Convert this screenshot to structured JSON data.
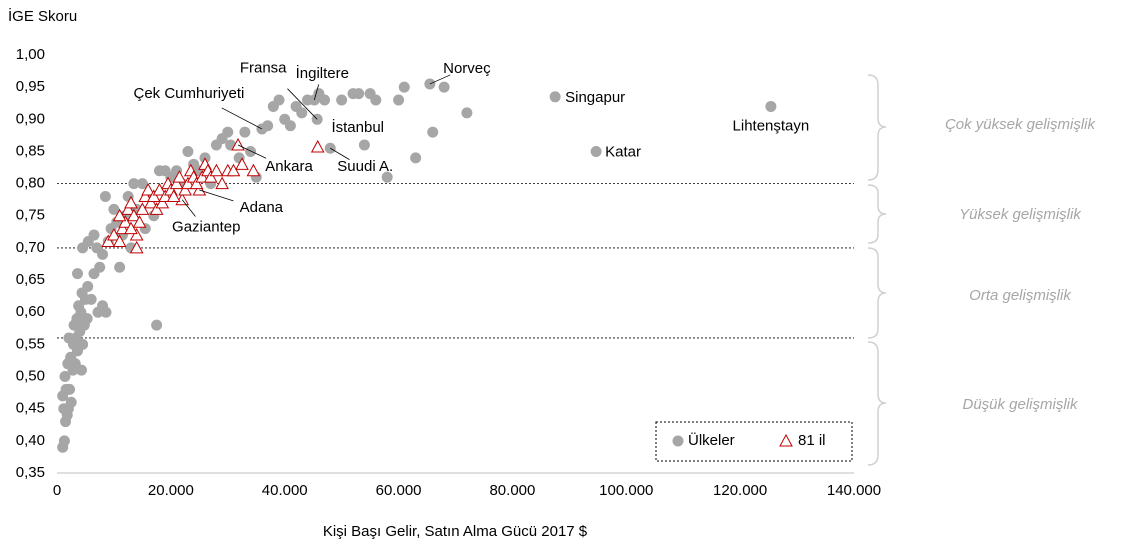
{
  "chart_data": {
    "type": "scatter",
    "y_label": "İGE Skoru",
    "x_label": "Kişi Başı Gelir, Satın Alma Gücü 2017 $",
    "xlim": [
      0,
      140000
    ],
    "ylim": [
      0.35,
      1.0
    ],
    "xticks": [
      0,
      {
        "value": 20000,
        "label": "20.000"
      },
      {
        "value": 40000,
        "label": "40.000"
      },
      {
        "value": 60000,
        "label": "60.000"
      },
      {
        "value": 80000,
        "label": "80.000"
      },
      {
        "value": 100000,
        "label": "100.000"
      },
      {
        "value": 120000,
        "label": "120.000"
      },
      {
        "value": 140000,
        "label": "140.000"
      }
    ],
    "yticks": [
      {
        "value": 0.35,
        "label": "0,35"
      },
      {
        "value": 0.4,
        "label": "0,40"
      },
      {
        "value": 0.45,
        "label": "0,45"
      },
      {
        "value": 0.5,
        "label": "0,50"
      },
      {
        "value": 0.55,
        "label": "0,55"
      },
      {
        "value": 0.6,
        "label": "0,60"
      },
      {
        "value": 0.65,
        "label": "0,65"
      },
      {
        "value": 0.7,
        "label": "0,70"
      },
      {
        "value": 0.75,
        "label": "0,75"
      },
      {
        "value": 0.8,
        "label": "0,80"
      },
      {
        "value": 0.85,
        "label": "0,85"
      },
      {
        "value": 0.9,
        "label": "0,90"
      },
      {
        "value": 0.95,
        "label": "0,95"
      },
      {
        "value": 1.0,
        "label": "1,00"
      }
    ],
    "thresholds": [
      0.8,
      0.7,
      0.56
    ],
    "band_labels": [
      "Çok yüksek gelişmişlik",
      "Yüksek gelişmişlik",
      "Orta gelişmişlik",
      "Düşük gelişmişlik"
    ],
    "series": [
      {
        "name": "Ülkeler",
        "color": "#a6a6a6",
        "marker": "circle",
        "x": [
          65500,
          87500,
          94700,
          125400,
          45700,
          45200,
          36000,
          48000,
          1000,
          1300,
          1500,
          1800,
          1200,
          2000,
          2500,
          1000,
          1600,
          2200,
          1400,
          2800,
          1900,
          3200,
          2400,
          4300,
          3600,
          2900,
          4500,
          3300,
          2100,
          4000,
          3000,
          4800,
          3500,
          5300,
          4200,
          3800,
          5000,
          4400,
          6000,
          3600,
          5400,
          7200,
          8600,
          8000,
          6500,
          7500,
          4500,
          5500,
          6500,
          7000,
          8000,
          9000,
          9500,
          10500,
          11000,
          8500,
          10000,
          11500,
          12000,
          13000,
          12500,
          14000,
          13500,
          15000,
          16000,
          17000,
          15500,
          18000,
          19000,
          20000,
          17500,
          21000,
          22000,
          23000,
          24000,
          25000,
          26000,
          27000,
          28000,
          29000,
          30000,
          30500,
          32000,
          33000,
          34000,
          35000,
          37000,
          38000,
          39000,
          40000,
          41000,
          42000,
          43000,
          44000,
          46000,
          47000,
          50000,
          52000,
          53000,
          54000,
          55000,
          56000,
          58000,
          60000,
          61000,
          63000,
          66000,
          68000,
          72000
        ],
        "values": [
          0.955,
          0.935,
          0.85,
          0.92,
          0.9,
          0.93,
          0.885,
          0.855,
          0.39,
          0.4,
          0.43,
          0.44,
          0.45,
          0.45,
          0.46,
          0.47,
          0.48,
          0.48,
          0.5,
          0.51,
          0.52,
          0.52,
          0.53,
          0.51,
          0.54,
          0.55,
          0.55,
          0.56,
          0.56,
          0.57,
          0.58,
          0.58,
          0.59,
          0.59,
          0.6,
          0.61,
          0.62,
          0.63,
          0.62,
          0.66,
          0.64,
          0.6,
          0.6,
          0.61,
          0.66,
          0.67,
          0.7,
          0.71,
          0.72,
          0.7,
          0.69,
          0.71,
          0.73,
          0.74,
          0.67,
          0.78,
          0.76,
          0.72,
          0.75,
          0.7,
          0.78,
          0.76,
          0.8,
          0.8,
          0.78,
          0.75,
          0.73,
          0.82,
          0.82,
          0.81,
          0.58,
          0.82,
          0.8,
          0.85,
          0.83,
          0.82,
          0.84,
          0.8,
          0.86,
          0.87,
          0.88,
          0.86,
          0.84,
          0.88,
          0.85,
          0.81,
          0.89,
          0.92,
          0.93,
          0.9,
          0.89,
          0.92,
          0.91,
          0.93,
          0.94,
          0.93,
          0.93,
          0.94,
          0.94,
          0.86,
          0.94,
          0.93,
          0.81,
          0.93,
          0.95,
          0.84,
          0.88,
          0.95,
          0.91
        ]
      },
      {
        "name": "81 il",
        "color": "#c00000",
        "marker": "triangle",
        "x": [
          45800,
          31800,
          25000,
          22000,
          9000,
          10000,
          11000,
          11500,
          12000,
          12500,
          13000,
          13500,
          14000,
          14500,
          15000,
          15500,
          16000,
          16500,
          17000,
          17500,
          18000,
          18500,
          19000,
          19500,
          20000,
          20500,
          21000,
          21500,
          22500,
          23000,
          23500,
          24000,
          24500,
          25500,
          26000,
          26500,
          27000,
          28000,
          29000,
          30000,
          31000,
          32500,
          34500,
          11000,
          13000,
          14000
        ],
        "values": [
          0.857,
          0.86,
          0.79,
          0.775,
          0.71,
          0.72,
          0.71,
          0.73,
          0.74,
          0.76,
          0.77,
          0.75,
          0.72,
          0.74,
          0.76,
          0.78,
          0.79,
          0.77,
          0.78,
          0.76,
          0.79,
          0.77,
          0.78,
          0.8,
          0.79,
          0.78,
          0.8,
          0.81,
          0.79,
          0.8,
          0.82,
          0.81,
          0.8,
          0.81,
          0.83,
          0.82,
          0.81,
          0.82,
          0.8,
          0.82,
          0.82,
          0.83,
          0.82,
          0.75,
          0.73,
          0.7
        ]
      }
    ],
    "annotations": [
      {
        "text": "Norveç",
        "series": 0,
        "index": 0
      },
      {
        "text": "Singapur",
        "series": 0,
        "index": 1
      },
      {
        "text": "Katar",
        "series": 0,
        "index": 2
      },
      {
        "text": "Lihtenştayn",
        "series": 0,
        "index": 3
      },
      {
        "text": "Fransa",
        "series": 0,
        "index": 4
      },
      {
        "text": "İngiltere",
        "series": 0,
        "index": 5
      },
      {
        "text": "Çek Cumhuriyeti",
        "series": 0,
        "index": 6
      },
      {
        "text": "Suudi A.",
        "series": 0,
        "index": 7
      },
      {
        "text": "İstanbul",
        "series": 1,
        "index": 0
      },
      {
        "text": "Ankara",
        "series": 1,
        "index": 1
      },
      {
        "text": "Adana",
        "series": 1,
        "index": 2
      },
      {
        "text": "Gaziantep",
        "series": 1,
        "index": 3
      }
    ]
  }
}
